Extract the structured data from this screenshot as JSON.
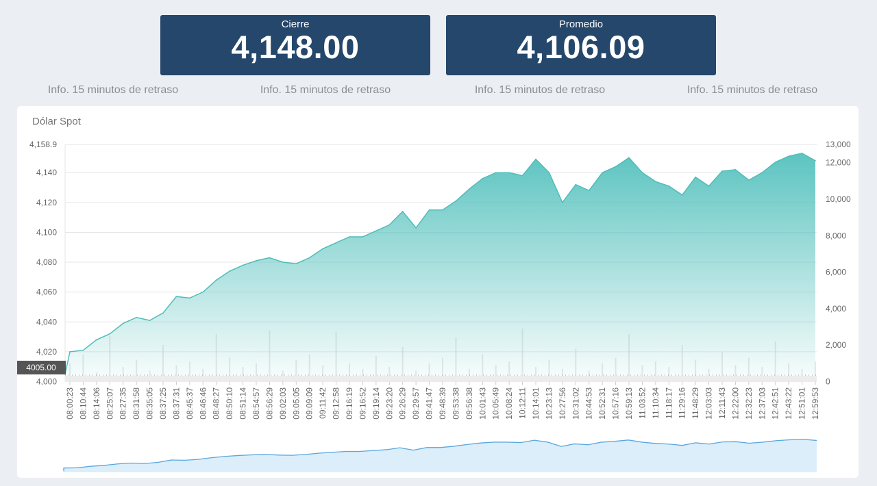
{
  "cards": [
    {
      "label": "Cierre",
      "value": "4,148.00"
    },
    {
      "label": "Promedio",
      "value": "4,106.09"
    }
  ],
  "info": [
    "Info. 15 minutos de retraso",
    "Info. 15 minutos de retraso",
    "Info. 15 minutos de retraso",
    "Info. 15 minutos de retraso"
  ],
  "chart_data": {
    "type": "area",
    "title": "Dólar Spot",
    "grid": true,
    "legend": "none",
    "colors": {
      "price_line": "#4fbcb8",
      "price_fill": "#5cc4c0",
      "volume": "#d9d9d9",
      "navigator_line": "#5aa6de",
      "navigator_fill": "#dbeefa",
      "start_tag": "#555555"
    },
    "y_left": {
      "range": [
        4000,
        4158.9
      ],
      "ticks": [
        "4,000",
        "4,020",
        "4,040",
        "4,060",
        "4,080",
        "4,100",
        "4,120",
        "4,140",
        "4,158.9"
      ]
    },
    "y_right": {
      "range": [
        0,
        13000
      ],
      "ticks": [
        "0",
        "2,000",
        "4,000",
        "6,000",
        "8,000",
        "10,000",
        "12,000",
        "13,000"
      ]
    },
    "start_tag": "4005.00",
    "x": [
      "08:00:23",
      "08:10:44",
      "08:14:06",
      "08:25:07",
      "08:27:35",
      "08:31:58",
      "08:35:05",
      "08:37:25",
      "08:37:31",
      "08:45:37",
      "08:46:46",
      "08:48:27",
      "08:50:10",
      "08:51:14",
      "08:54:57",
      "08:56:29",
      "09:02:03",
      "09:05:05",
      "09:09:09",
      "09:11:42",
      "09:12:58",
      "09:16:19",
      "09:16:52",
      "09:19:14",
      "09:23:20",
      "09:26:29",
      "09:29:57",
      "09:41:47",
      "09:48:39",
      "09:53:38",
      "09:56:38",
      "10:01:43",
      "10:05:49",
      "10:08:24",
      "10:12:11",
      "10:14:01",
      "10:23:13",
      "10:27:56",
      "10:31:02",
      "10:44:53",
      "10:52:31",
      "10:57:16",
      "10:59:13",
      "11:03:52",
      "11:10:34",
      "11:18:17",
      "11:29:16",
      "11:48:29",
      "12:03:03",
      "12:11:43",
      "12:22:00",
      "12:32:23",
      "12:37:03",
      "12:42:51",
      "12:43:22",
      "12:51:01",
      "12:59:53"
    ],
    "price": [
      4020,
      4021,
      4028,
      4032,
      4039,
      4043,
      4041,
      4046,
      4057,
      4056,
      4060,
      4068,
      4074,
      4078,
      4081,
      4083,
      4080,
      4079,
      4083,
      4089,
      4093,
      4097,
      4097,
      4101,
      4105,
      4114,
      4103,
      4115,
      4115,
      4121,
      4129,
      4136,
      4140,
      4140,
      4138,
      4149,
      4140,
      4120,
      4132,
      4128,
      4140,
      4144,
      4150,
      4140,
      4134,
      4131,
      4125,
      4137,
      4131,
      4141,
      4142,
      4135,
      4140,
      4147,
      4151,
      4153,
      4148
    ],
    "volume": [
      1000,
      1500,
      500,
      2500,
      800,
      1200,
      600,
      2000,
      900,
      1100,
      700,
      2600,
      1300,
      800,
      1000,
      2800,
      600,
      1200,
      1500,
      900,
      2700,
      1000,
      700,
      1400,
      800,
      1900,
      600,
      1000,
      1300,
      2400,
      700,
      1500,
      900,
      1100,
      2900,
      800,
      1200,
      700,
      1800,
      600,
      1000,
      1300,
      2600,
      900,
      1100,
      800,
      2000,
      1200,
      700,
      1600,
      900,
      1300,
      800,
      2200,
      1000,
      700,
      1100
    ]
  }
}
